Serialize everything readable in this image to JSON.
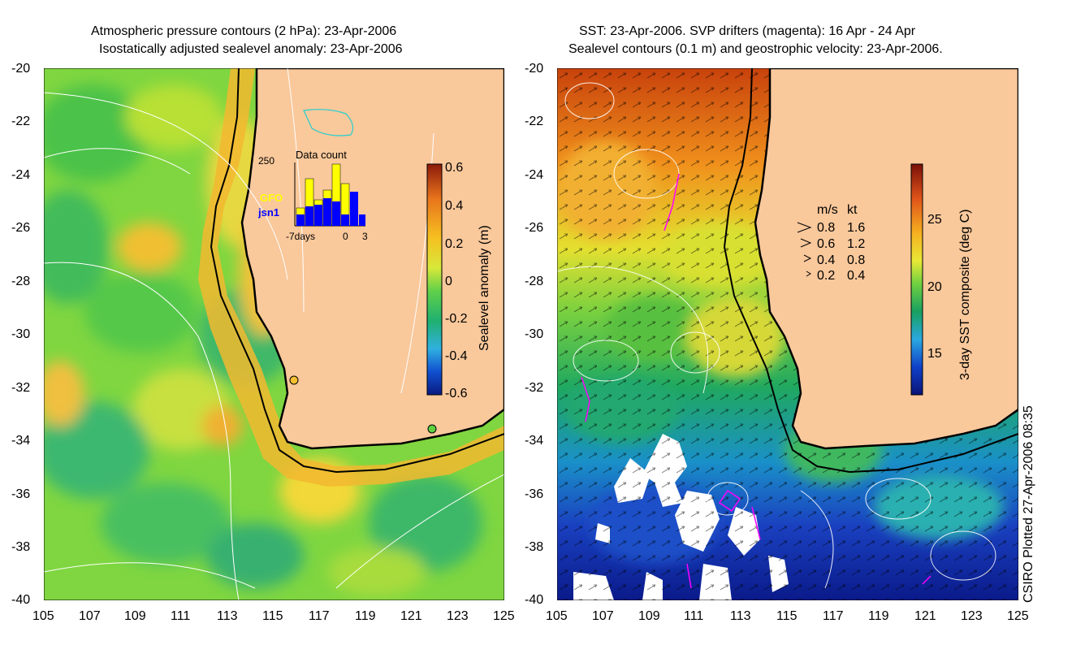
{
  "left_panel": {
    "title_line1": "Atmospheric pressure contours (2 hPa): 23-Apr-2006",
    "title_line2": "Isostatically adjusted sealevel anomaly: 23-Apr-2006",
    "colorbar": {
      "label": "Sealevel anomaly (m)",
      "ticks": [
        "0.6",
        "0.4",
        "0.2",
        "0",
        "-0.2",
        "-0.4",
        "-0.6"
      ],
      "range": [
        -0.6,
        0.6
      ]
    },
    "inset": {
      "title": "Data count",
      "y_max_label": "250",
      "x_labels": [
        "-7days",
        "0",
        "3"
      ],
      "legend": [
        {
          "label": "GFO",
          "color": "#ffff00"
        },
        {
          "label": "jsn1",
          "color": "#0000ff"
        }
      ]
    }
  },
  "right_panel": {
    "title_line1": "SST: 23-Apr-2006. SVP drifters (magenta): 16 Apr - 24 Apr",
    "title_line2": "Sealevel contours (0.1 m) and geostrophic velocity: 23-Apr-2006.",
    "colorbar": {
      "label": "3-day SST composite (deg C)",
      "ticks": [
        "25",
        "20",
        "15"
      ],
      "range": [
        12,
        29
      ]
    },
    "velocity_legend": {
      "header_ms": "m/s",
      "header_kt": "kt",
      "rows": [
        {
          "ms": "0.8",
          "kt": "1.6"
        },
        {
          "ms": "0.6",
          "kt": "1.2"
        },
        {
          "ms": "0.4",
          "kt": "0.8"
        },
        {
          "ms": "0.2",
          "kt": "0.4"
        }
      ]
    }
  },
  "axes": {
    "lat_ticks": [
      "-20",
      "-22",
      "-24",
      "-26",
      "-28",
      "-30",
      "-32",
      "-34",
      "-36",
      "-38",
      "-40"
    ],
    "lon_ticks": [
      "105",
      "107",
      "109",
      "111",
      "113",
      "115",
      "117",
      "119",
      "121",
      "123",
      "125"
    ],
    "lon_range": [
      105,
      125
    ],
    "lat_range": [
      -40,
      -20
    ]
  },
  "credit": "CSIRO Plotted 27-Apr-2006 08:35",
  "colors": {
    "land": "#f9c89b",
    "coast": "#000000",
    "contour": "#ffffff",
    "drifter": "#ff00ff"
  }
}
